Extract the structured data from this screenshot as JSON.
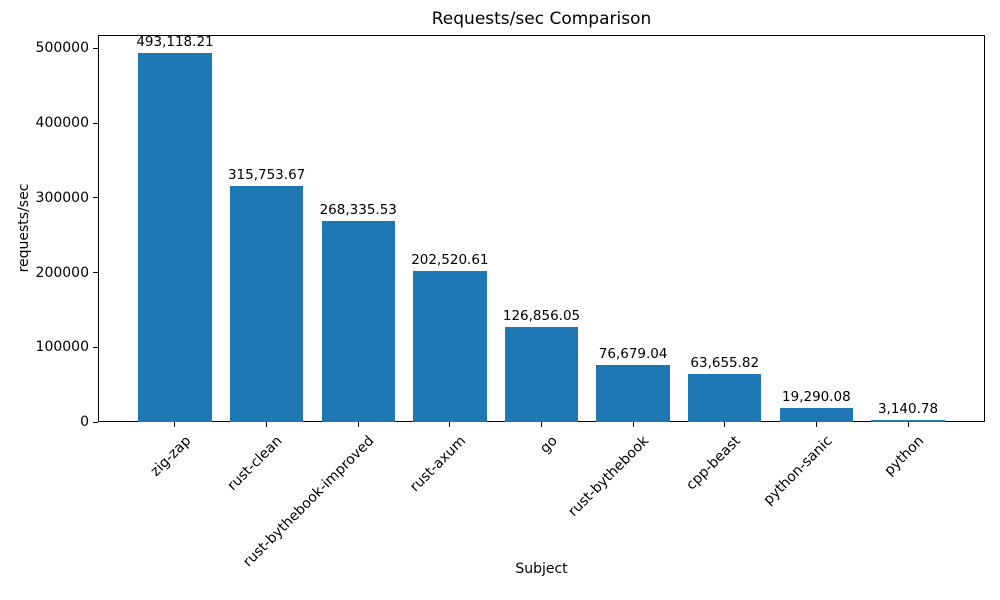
{
  "chart_data": {
    "type": "bar",
    "title": "Requests/sec Comparison",
    "xlabel": "Subject",
    "ylabel": "requests/sec",
    "categories": [
      "zig-zap",
      "rust-clean",
      "rust-bythebook-improved",
      "rust-axum",
      "go",
      "rust-bythebook",
      "cpp-beast",
      "python-sanic",
      "python"
    ],
    "values": [
      493118.21,
      315753.67,
      268335.53,
      202520.61,
      126856.05,
      76679.04,
      63655.82,
      19290.08,
      3140.78
    ],
    "value_labels": [
      "493,118.21",
      "315,753.67",
      "268,335.53",
      "202,520.61",
      "126,856.05",
      "76,679.04",
      "63,655.82",
      "19,290.08",
      "3,140.78"
    ],
    "yticks": [
      0,
      100000,
      200000,
      300000,
      400000,
      500000
    ],
    "ytick_labels": [
      "0",
      "100000",
      "200000",
      "300000",
      "400000",
      "500000"
    ],
    "ylim": [
      0,
      517774
    ],
    "xlim": [
      -0.84,
      8.84
    ],
    "bar_width_units": 0.8,
    "bar_color": "#1f77b4",
    "axis_color": "#000000",
    "grid": false,
    "legend": null,
    "x_tick_rotation_deg": 45
  }
}
